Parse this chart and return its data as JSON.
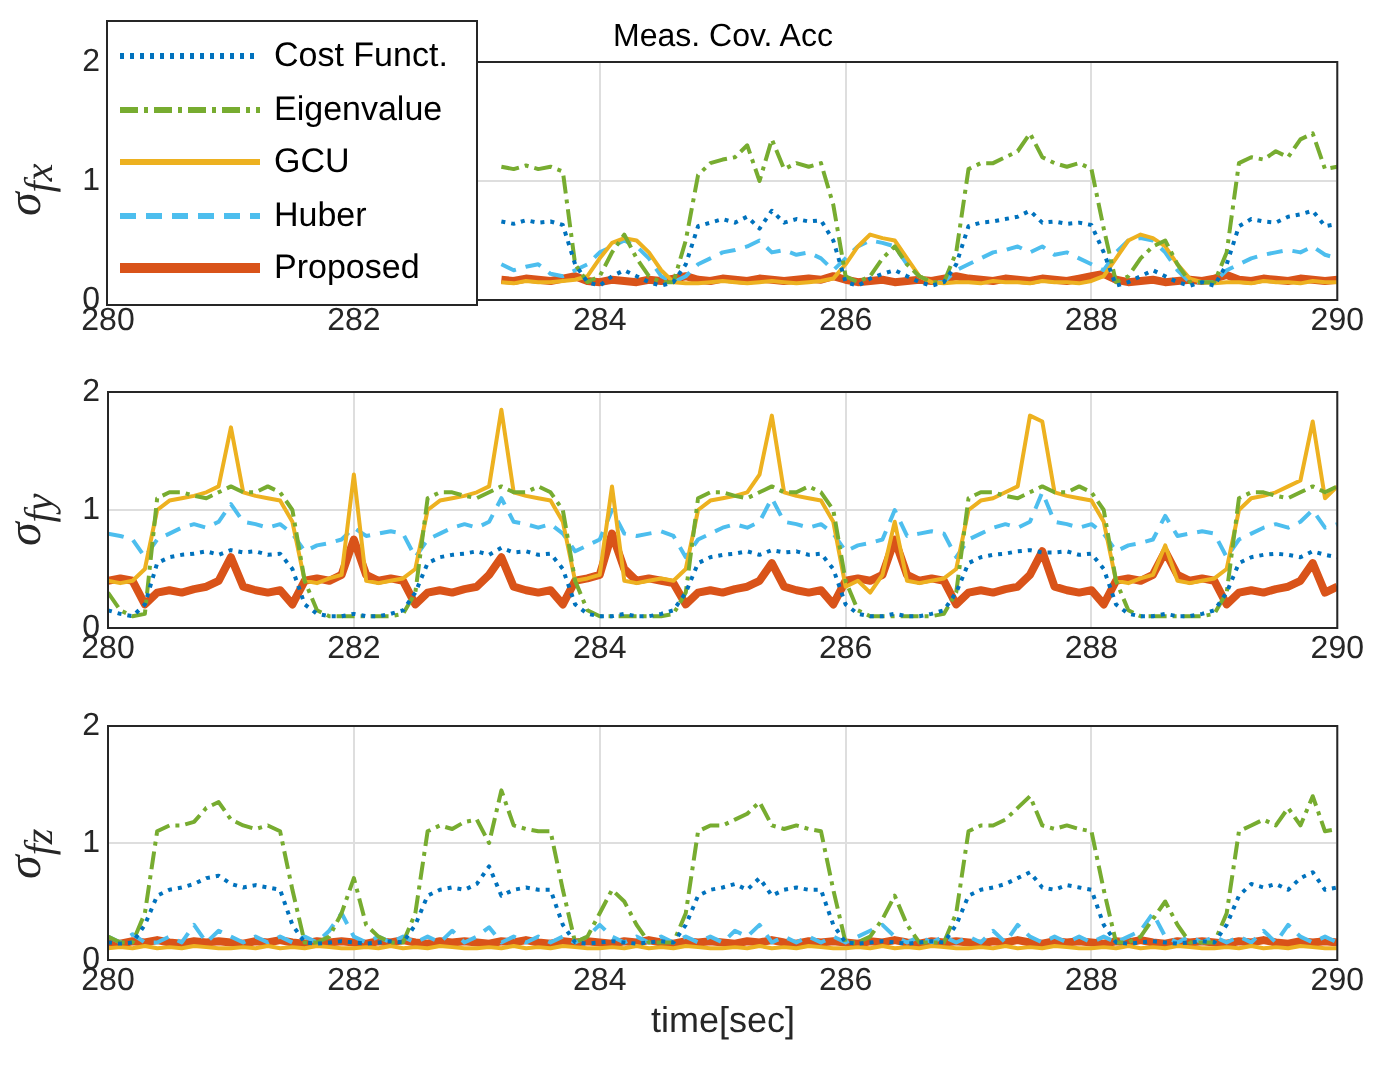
{
  "chart_data": [
    {
      "type": "line",
      "title": "Meas. Cov. Acc",
      "ylabel": "σ$_{fx}$",
      "xlim": [
        280,
        290
      ],
      "xticks": [
        280,
        282,
        284,
        286,
        288,
        290
      ],
      "ylim": [
        0,
        2
      ],
      "yticks": [
        0,
        1,
        2
      ],
      "grid": true,
      "legend": "top left",
      "marker": "none",
      "x": [
        283.2,
        283.3,
        283.4,
        283.5,
        283.6,
        283.7,
        283.8,
        283.9,
        284,
        284.1,
        284.2,
        284.3,
        284.4,
        284.5,
        284.6,
        284.7,
        284.8,
        284.9,
        285,
        285.1,
        285.2,
        285.3,
        285.4,
        285.5,
        285.6,
        285.7,
        285.8,
        285.9,
        286,
        286.1,
        286.2,
        286.3,
        286.4,
        286.5,
        286.6,
        286.7,
        286.8,
        286.9,
        287,
        287.1,
        287.2,
        287.3,
        287.4,
        287.5,
        287.6,
        287.7,
        287.8,
        287.9,
        288,
        288.1,
        288.2,
        288.3,
        288.4,
        288.5,
        288.6,
        288.7,
        288.8,
        288.9,
        289,
        289.1,
        289.2,
        289.3,
        289.4,
        289.5,
        289.6,
        289.7,
        289.8,
        289.9,
        290
      ],
      "series": [
        {
          "name": "Cost Funct.",
          "color": "#0072bd",
          "line_style": "dotted",
          "values": [
            0.66,
            0.64,
            0.67,
            0.65,
            0.66,
            0.63,
            0.3,
            0.15,
            0.12,
            0.2,
            0.25,
            0.2,
            0.15,
            0.12,
            0.15,
            0.3,
            0.62,
            0.65,
            0.68,
            0.65,
            0.7,
            0.6,
            0.75,
            0.65,
            0.68,
            0.66,
            0.67,
            0.5,
            0.15,
            0.12,
            0.18,
            0.22,
            0.25,
            0.2,
            0.15,
            0.12,
            0.15,
            0.3,
            0.62,
            0.65,
            0.66,
            0.68,
            0.7,
            0.75,
            0.65,
            0.66,
            0.64,
            0.65,
            0.63,
            0.4,
            0.12,
            0.15,
            0.2,
            0.25,
            0.2,
            0.15,
            0.12,
            0.15,
            0.12,
            0.3,
            0.62,
            0.68,
            0.66,
            0.65,
            0.7,
            0.72,
            0.75,
            0.62,
            0.64
          ]
        },
        {
          "name": "Eigenvalue",
          "color": "#77ac30",
          "line_style": "dashdot",
          "values": [
            1.12,
            1.1,
            1.13,
            1.1,
            1.12,
            1.08,
            0.3,
            0.15,
            0.2,
            0.4,
            0.55,
            0.35,
            0.2,
            0.15,
            0.15,
            0.5,
            1.05,
            1.15,
            1.18,
            1.2,
            1.3,
            1,
            1.35,
            1.1,
            1.15,
            1.12,
            1.15,
            0.8,
            0.2,
            0.15,
            0.2,
            0.35,
            0.45,
            0.3,
            0.2,
            0.15,
            0.15,
            0.4,
            1.1,
            1.15,
            1.15,
            1.2,
            1.25,
            1.4,
            1.2,
            1.15,
            1.12,
            1.15,
            1.1,
            0.6,
            0.15,
            0.2,
            0.35,
            0.45,
            0.5,
            0.3,
            0.15,
            0.15,
            0.15,
            0.4,
            1.15,
            1.2,
            1.18,
            1.25,
            1.2,
            1.35,
            1.4,
            1.1,
            1.12
          ]
        },
        {
          "name": "GCU",
          "color": "#edb120",
          "line_style": "solid",
          "values": [
            0.15,
            0.14,
            0.16,
            0.15,
            0.15,
            0.16,
            0.17,
            0.2,
            0.35,
            0.48,
            0.52,
            0.5,
            0.4,
            0.25,
            0.15,
            0.14,
            0.14,
            0.15,
            0.16,
            0.15,
            0.14,
            0.15,
            0.16,
            0.15,
            0.14,
            0.15,
            0.16,
            0.18,
            0.3,
            0.45,
            0.55,
            0.52,
            0.5,
            0.35,
            0.2,
            0.15,
            0.14,
            0.15,
            0.15,
            0.14,
            0.16,
            0.15,
            0.15,
            0.14,
            0.16,
            0.15,
            0.15,
            0.14,
            0.16,
            0.2,
            0.35,
            0.5,
            0.55,
            0.52,
            0.45,
            0.3,
            0.18,
            0.15,
            0.14,
            0.15,
            0.15,
            0.14,
            0.16,
            0.15,
            0.15,
            0.14,
            0.16,
            0.15,
            0.15
          ]
        },
        {
          "name": "Huber",
          "color": "#4dbeee",
          "line_style": "dashed",
          "values": [
            0.3,
            0.25,
            0.28,
            0.3,
            0.22,
            0.2,
            0.25,
            0.3,
            0.4,
            0.45,
            0.5,
            0.45,
            0.35,
            0.2,
            0.15,
            0.2,
            0.3,
            0.35,
            0.4,
            0.42,
            0.45,
            0.5,
            0.4,
            0.42,
            0.38,
            0.4,
            0.35,
            0.25,
            0.35,
            0.45,
            0.5,
            0.48,
            0.45,
            0.3,
            0.2,
            0.15,
            0.15,
            0.25,
            0.3,
            0.35,
            0.4,
            0.42,
            0.45,
            0.4,
            0.45,
            0.38,
            0.4,
            0.35,
            0.3,
            0.25,
            0.4,
            0.5,
            0.52,
            0.5,
            0.4,
            0.25,
            0.15,
            0.15,
            0.15,
            0.25,
            0.3,
            0.35,
            0.38,
            0.4,
            0.42,
            0.4,
            0.45,
            0.38,
            0.35
          ]
        },
        {
          "name": "Proposed",
          "color": "#d95319",
          "line_style": "solid",
          "values": [
            0.17,
            0.16,
            0.18,
            0.17,
            0.16,
            0.18,
            0.2,
            0.16,
            0.15,
            0.17,
            0.16,
            0.15,
            0.17,
            0.16,
            0.18,
            0.2,
            0.17,
            0.16,
            0.18,
            0.17,
            0.16,
            0.18,
            0.17,
            0.16,
            0.17,
            0.18,
            0.17,
            0.2,
            0.17,
            0.15,
            0.16,
            0.17,
            0.15,
            0.16,
            0.17,
            0.16,
            0.18,
            0.2,
            0.18,
            0.17,
            0.16,
            0.18,
            0.17,
            0.16,
            0.18,
            0.17,
            0.16,
            0.18,
            0.2,
            0.22,
            0.17,
            0.15,
            0.16,
            0.17,
            0.15,
            0.16,
            0.17,
            0.16,
            0.18,
            0.21,
            0.17,
            0.16,
            0.18,
            0.17,
            0.16,
            0.18,
            0.17,
            0.16,
            0.17
          ]
        }
      ]
    },
    {
      "type": "line",
      "ylabel": "σ$_{fy}$",
      "xlim": [
        280,
        290
      ],
      "xticks": [
        280,
        282,
        284,
        286,
        288,
        290
      ],
      "ylim": [
        0,
        2
      ],
      "yticks": [
        0,
        1,
        2
      ],
      "grid": true,
      "marker": "none",
      "x": [
        280,
        280.1,
        280.2,
        280.3,
        280.4,
        280.5,
        280.6,
        280.7,
        280.8,
        280.9,
        281,
        281.1,
        281.2,
        281.3,
        281.4,
        281.5,
        281.6,
        281.7,
        281.8,
        281.9,
        282,
        282.1,
        282.2,
        282.3,
        282.4,
        282.5,
        282.6,
        282.7,
        282.8,
        282.9,
        283,
        283.1,
        283.2,
        283.3,
        283.4,
        283.5,
        283.6,
        283.7,
        283.8,
        283.9,
        284,
        284.1,
        284.2,
        284.3,
        284.4,
        284.5,
        284.6,
        284.7,
        284.8,
        284.9,
        285,
        285.1,
        285.2,
        285.3,
        285.4,
        285.5,
        285.6,
        285.7,
        285.8,
        285.9,
        286,
        286.1,
        286.2,
        286.3,
        286.4,
        286.5,
        286.6,
        286.7,
        286.8,
        286.9,
        287,
        287.1,
        287.2,
        287.3,
        287.4,
        287.5,
        287.6,
        287.7,
        287.8,
        287.9,
        288,
        288.1,
        288.2,
        288.3,
        288.4,
        288.5,
        288.6,
        288.7,
        288.8,
        288.9,
        289,
        289.1,
        289.2,
        289.3,
        289.4,
        289.5,
        289.6,
        289.7,
        289.8,
        289.9,
        290
      ],
      "series": [
        {
          "color": "#0072bd",
          "line_style": "dotted",
          "values": [
            0.15,
            0.12,
            0.1,
            0.2,
            0.55,
            0.6,
            0.62,
            0.63,
            0.65,
            0.62,
            0.66,
            0.64,
            0.65,
            0.62,
            0.63,
            0.5,
            0.2,
            0.12,
            0.1,
            0.1,
            0.12,
            0.1,
            0.1,
            0.12,
            0.15,
            0.3,
            0.55,
            0.6,
            0.62,
            0.63,
            0.65,
            0.62,
            0.68,
            0.64,
            0.65,
            0.62,
            0.63,
            0.5,
            0.2,
            0.12,
            0.1,
            0.1,
            0.12,
            0.1,
            0.1,
            0.12,
            0.15,
            0.3,
            0.55,
            0.6,
            0.62,
            0.63,
            0.65,
            0.62,
            0.66,
            0.64,
            0.65,
            0.62,
            0.63,
            0.5,
            0.2,
            0.12,
            0.1,
            0.1,
            0.12,
            0.1,
            0.1,
            0.12,
            0.15,
            0.3,
            0.55,
            0.6,
            0.62,
            0.63,
            0.65,
            0.66,
            0.64,
            0.64,
            0.65,
            0.62,
            0.63,
            0.5,
            0.2,
            0.12,
            0.1,
            0.1,
            0.12,
            0.1,
            0.1,
            0.12,
            0.15,
            0.3,
            0.55,
            0.6,
            0.62,
            0.63,
            0.62,
            0.6,
            0.65,
            0.62,
            0.6
          ]
        },
        {
          "color": "#77ac30",
          "line_style": "dashdot",
          "values": [
            0.3,
            0.15,
            0.1,
            0.12,
            1.1,
            1.15,
            1.15,
            1.12,
            1.1,
            1.15,
            1.2,
            1.15,
            1.15,
            1.2,
            1.15,
            1,
            0.4,
            0.15,
            0.1,
            0.1,
            0.1,
            0.1,
            0.1,
            0.1,
            0.12,
            0.3,
            1.1,
            1.15,
            1.15,
            1.12,
            1.1,
            1.15,
            1.2,
            1.15,
            1.15,
            1.2,
            1.15,
            1,
            0.4,
            0.15,
            0.1,
            0.1,
            0.1,
            0.1,
            0.1,
            0.1,
            0.12,
            0.3,
            1.1,
            1.15,
            1.15,
            1.12,
            1.1,
            1.15,
            1.2,
            1.15,
            1.15,
            1.2,
            1.15,
            1,
            0.4,
            0.15,
            0.1,
            0.1,
            0.1,
            0.1,
            0.1,
            0.1,
            0.12,
            0.3,
            1.1,
            1.15,
            1.15,
            1.12,
            1.1,
            1.15,
            1.2,
            1.15,
            1.15,
            1.2,
            1.15,
            1,
            0.4,
            0.15,
            0.1,
            0.1,
            0.1,
            0.1,
            0.1,
            0.1,
            0.12,
            0.3,
            1.1,
            1.15,
            1.15,
            1.12,
            1.1,
            1.15,
            1.2,
            1.15,
            1.2
          ]
        },
        {
          "color": "#edb120",
          "line_style": "solid",
          "values": [
            0.4,
            0.38,
            0.4,
            0.5,
            1,
            1.08,
            1.1,
            1.12,
            1.15,
            1.2,
            1.7,
            1.15,
            1.12,
            1.1,
            1.08,
            0.9,
            0.4,
            0.38,
            0.42,
            0.45,
            1.3,
            0.4,
            0.38,
            0.4,
            0.42,
            0.5,
            1,
            1.08,
            1.1,
            1.12,
            1.15,
            1.2,
            1.85,
            1.15,
            1.12,
            1.1,
            1.08,
            0.9,
            0.4,
            0.42,
            0.45,
            1.2,
            0.4,
            0.38,
            0.4,
            0.42,
            0.4,
            0.5,
            1,
            1.08,
            1.1,
            1.12,
            1.15,
            1.3,
            1.8,
            1.15,
            1.12,
            1.1,
            1.08,
            0.9,
            0.35,
            0.4,
            0.3,
            0.45,
            0.9,
            0.4,
            0.38,
            0.4,
            0.42,
            0.5,
            1,
            1.08,
            1.1,
            1.15,
            1.2,
            1.8,
            1.75,
            1.15,
            1.12,
            1.1,
            1.08,
            0.9,
            0.4,
            0.38,
            0.42,
            0.45,
            0.7,
            0.4,
            0.38,
            0.4,
            0.42,
            0.5,
            1,
            1.1,
            1.12,
            1.15,
            1.2,
            1.25,
            1.75,
            1.1,
            1.2
          ]
        },
        {
          "color": "#4dbeee",
          "line_style": "dashed",
          "values": [
            0.8,
            0.78,
            0.75,
            0.6,
            0.75,
            0.8,
            0.85,
            0.88,
            0.85,
            0.9,
            1.05,
            0.9,
            0.88,
            0.85,
            0.88,
            0.8,
            0.65,
            0.7,
            0.72,
            0.75,
            0.85,
            0.78,
            0.8,
            0.82,
            0.8,
            0.6,
            0.75,
            0.8,
            0.85,
            0.88,
            0.85,
            0.9,
            1.1,
            0.9,
            0.88,
            0.85,
            0.88,
            0.8,
            0.65,
            0.7,
            0.75,
            1,
            0.8,
            0.78,
            0.8,
            0.82,
            0.78,
            0.6,
            0.75,
            0.8,
            0.85,
            0.88,
            0.85,
            0.9,
            1.1,
            0.9,
            0.88,
            0.85,
            0.88,
            0.8,
            0.65,
            0.7,
            0.72,
            0.75,
            1,
            0.78,
            0.8,
            0.82,
            0.8,
            0.6,
            0.75,
            0.8,
            0.85,
            0.88,
            0.85,
            0.9,
            1.15,
            0.9,
            0.88,
            0.85,
            0.88,
            0.8,
            0.65,
            0.7,
            0.72,
            0.75,
            0.95,
            0.78,
            0.8,
            0.82,
            0.8,
            0.6,
            0.75,
            0.8,
            0.85,
            0.88,
            0.85,
            0.9,
            1,
            0.85,
            0.88
          ]
        },
        {
          "color": "#d95319",
          "line_style": "solid",
          "values": [
            0.4,
            0.42,
            0.4,
            0.2,
            0.3,
            0.32,
            0.3,
            0.33,
            0.35,
            0.4,
            0.6,
            0.35,
            0.32,
            0.3,
            0.32,
            0.2,
            0.4,
            0.42,
            0.4,
            0.45,
            0.75,
            0.45,
            0.4,
            0.42,
            0.4,
            0.2,
            0.3,
            0.32,
            0.3,
            0.33,
            0.35,
            0.45,
            0.6,
            0.35,
            0.32,
            0.3,
            0.32,
            0.2,
            0.4,
            0.42,
            0.45,
            0.8,
            0.5,
            0.4,
            0.42,
            0.4,
            0.38,
            0.2,
            0.3,
            0.32,
            0.3,
            0.33,
            0.35,
            0.4,
            0.55,
            0.35,
            0.32,
            0.3,
            0.32,
            0.2,
            0.4,
            0.42,
            0.4,
            0.45,
            0.75,
            0.45,
            0.4,
            0.42,
            0.4,
            0.2,
            0.3,
            0.32,
            0.3,
            0.33,
            0.35,
            0.45,
            0.65,
            0.35,
            0.32,
            0.3,
            0.32,
            0.2,
            0.4,
            0.42,
            0.4,
            0.45,
            0.65,
            0.45,
            0.4,
            0.42,
            0.4,
            0.2,
            0.3,
            0.32,
            0.3,
            0.33,
            0.35,
            0.4,
            0.55,
            0.3,
            0.35
          ]
        }
      ]
    },
    {
      "type": "line",
      "ylabel": "σ$_{fz}$",
      "xlabel": "time[sec]",
      "xlim": [
        280,
        290
      ],
      "xticks": [
        280,
        282,
        284,
        286,
        288,
        290
      ],
      "ylim": [
        0,
        2
      ],
      "yticks": [
        0,
        1,
        2
      ],
      "grid": true,
      "marker": "none",
      "x": [
        280,
        280.1,
        280.2,
        280.3,
        280.4,
        280.5,
        280.6,
        280.7,
        280.8,
        280.9,
        281,
        281.1,
        281.2,
        281.3,
        281.4,
        281.5,
        281.6,
        281.7,
        281.8,
        281.9,
        282,
        282.1,
        282.2,
        282.3,
        282.4,
        282.5,
        282.6,
        282.7,
        282.8,
        282.9,
        283,
        283.1,
        283.2,
        283.3,
        283.4,
        283.5,
        283.6,
        283.7,
        283.8,
        283.9,
        284,
        284.1,
        284.2,
        284.3,
        284.4,
        284.5,
        284.6,
        284.7,
        284.8,
        284.9,
        285,
        285.1,
        285.2,
        285.3,
        285.4,
        285.5,
        285.6,
        285.7,
        285.8,
        285.9,
        286,
        286.1,
        286.2,
        286.3,
        286.4,
        286.5,
        286.6,
        286.7,
        286.8,
        286.9,
        287,
        287.1,
        287.2,
        287.3,
        287.4,
        287.5,
        287.6,
        287.7,
        287.8,
        287.9,
        288,
        288.1,
        288.2,
        288.3,
        288.4,
        288.5,
        288.6,
        288.7,
        288.8,
        288.9,
        289,
        289.1,
        289.2,
        289.3,
        289.4,
        289.5,
        289.6,
        289.7,
        289.8,
        289.9,
        290
      ],
      "series": [
        {
          "color": "#0072bd",
          "line_style": "dotted",
          "values": [
            0.15,
            0.14,
            0.15,
            0.3,
            0.55,
            0.6,
            0.62,
            0.65,
            0.7,
            0.72,
            0.65,
            0.62,
            0.64,
            0.62,
            0.6,
            0.3,
            0.15,
            0.14,
            0.15,
            0.16,
            0.15,
            0.14,
            0.15,
            0.16,
            0.15,
            0.3,
            0.55,
            0.6,
            0.62,
            0.6,
            0.65,
            0.8,
            0.55,
            0.6,
            0.62,
            0.6,
            0.6,
            0.3,
            0.15,
            0.14,
            0.15,
            0.16,
            0.15,
            0.14,
            0.15,
            0.16,
            0.15,
            0.3,
            0.55,
            0.6,
            0.62,
            0.65,
            0.6,
            0.7,
            0.55,
            0.6,
            0.62,
            0.6,
            0.6,
            0.3,
            0.15,
            0.14,
            0.15,
            0.16,
            0.15,
            0.14,
            0.15,
            0.16,
            0.15,
            0.3,
            0.55,
            0.6,
            0.62,
            0.65,
            0.7,
            0.75,
            0.62,
            0.6,
            0.64,
            0.62,
            0.6,
            0.3,
            0.15,
            0.14,
            0.15,
            0.16,
            0.15,
            0.14,
            0.15,
            0.16,
            0.15,
            0.3,
            0.55,
            0.65,
            0.62,
            0.65,
            0.6,
            0.7,
            0.75,
            0.6,
            0.62
          ]
        },
        {
          "color": "#77ac30",
          "line_style": "dashdot",
          "values": [
            0.2,
            0.15,
            0.15,
            0.4,
            1.1,
            1.15,
            1.15,
            1.18,
            1.3,
            1.35,
            1.2,
            1.15,
            1.12,
            1.15,
            1.1,
            0.6,
            0.15,
            0.15,
            0.2,
            0.4,
            0.7,
            0.3,
            0.2,
            0.15,
            0.15,
            0.4,
            1.1,
            1.15,
            1.12,
            1.18,
            1.2,
            1,
            1.45,
            1.15,
            1.12,
            1.1,
            1.1,
            0.6,
            0.15,
            0.2,
            0.4,
            0.6,
            0.5,
            0.3,
            0.15,
            0.15,
            0.15,
            0.4,
            1.1,
            1.15,
            1.15,
            1.2,
            1.25,
            1.35,
            1.15,
            1.12,
            1.15,
            1.12,
            1.1,
            0.6,
            0.15,
            0.15,
            0.2,
            0.35,
            0.55,
            0.3,
            0.15,
            0.15,
            0.15,
            0.4,
            1.1,
            1.15,
            1.15,
            1.2,
            1.3,
            1.4,
            1.15,
            1.12,
            1.15,
            1.12,
            1.1,
            0.6,
            0.15,
            0.15,
            0.2,
            0.35,
            0.5,
            0.3,
            0.15,
            0.15,
            0.15,
            0.4,
            1.1,
            1.15,
            1.2,
            1.15,
            1.3,
            1.15,
            1.4,
            1.1,
            1.12
          ]
        },
        {
          "color": "#edb120",
          "line_style": "solid",
          "values": [
            0.1,
            0.11,
            0.1,
            0.12,
            0.1,
            0.11,
            0.1,
            0.12,
            0.11,
            0.1,
            0.1,
            0.11,
            0.1,
            0.12,
            0.1,
            0.11,
            0.1,
            0.12,
            0.11,
            0.1,
            0.1,
            0.11,
            0.1,
            0.12,
            0.1,
            0.11,
            0.1,
            0.12,
            0.11,
            0.1,
            0.1,
            0.11,
            0.1,
            0.12,
            0.1,
            0.11,
            0.1,
            0.12,
            0.11,
            0.1,
            0.1,
            0.11,
            0.1,
            0.12,
            0.1,
            0.11,
            0.1,
            0.12,
            0.11,
            0.1,
            0.1,
            0.11,
            0.1,
            0.12,
            0.1,
            0.11,
            0.1,
            0.12,
            0.11,
            0.1,
            0.1,
            0.11,
            0.1,
            0.12,
            0.1,
            0.11,
            0.1,
            0.12,
            0.11,
            0.1,
            0.1,
            0.11,
            0.1,
            0.12,
            0.1,
            0.11,
            0.1,
            0.12,
            0.11,
            0.1,
            0.1,
            0.11,
            0.1,
            0.12,
            0.1,
            0.11,
            0.1,
            0.12,
            0.11,
            0.1,
            0.1,
            0.11,
            0.1,
            0.12,
            0.1,
            0.11,
            0.1,
            0.12,
            0.11,
            0.1,
            0.1
          ]
        },
        {
          "color": "#4dbeee",
          "line_style": "dashed",
          "values": [
            0.2,
            0.15,
            0.22,
            0.15,
            0.15,
            0.2,
            0.15,
            0.3,
            0.15,
            0.25,
            0.2,
            0.15,
            0.2,
            0.15,
            0.2,
            0.15,
            0.2,
            0.15,
            0.25,
            0.4,
            0.2,
            0.15,
            0.2,
            0.15,
            0.2,
            0.15,
            0.2,
            0.15,
            0.25,
            0.15,
            0.2,
            0.28,
            0.15,
            0.2,
            0.15,
            0.2,
            0.15,
            0.2,
            0.15,
            0.2,
            0.3,
            0.2,
            0.15,
            0.2,
            0.15,
            0.2,
            0.15,
            0.2,
            0.15,
            0.2,
            0.15,
            0.25,
            0.2,
            0.3,
            0.15,
            0.2,
            0.15,
            0.2,
            0.15,
            0.2,
            0.15,
            0.2,
            0.25,
            0.3,
            0.2,
            0.15,
            0.2,
            0.15,
            0.2,
            0.15,
            0.2,
            0.15,
            0.25,
            0.15,
            0.3,
            0.2,
            0.15,
            0.2,
            0.15,
            0.2,
            0.15,
            0.2,
            0.15,
            0.2,
            0.25,
            0.4,
            0.2,
            0.15,
            0.2,
            0.15,
            0.2,
            0.15,
            0.2,
            0.15,
            0.25,
            0.15,
            0.3,
            0.2,
            0.15,
            0.2,
            0.15
          ]
        },
        {
          "color": "#d95319",
          "line_style": "solid",
          "values": [
            0.15,
            0.14,
            0.16,
            0.15,
            0.17,
            0.15,
            0.14,
            0.16,
            0.15,
            0.16,
            0.15,
            0.14,
            0.16,
            0.15,
            0.17,
            0.15,
            0.14,
            0.16,
            0.15,
            0.16,
            0.15,
            0.14,
            0.16,
            0.15,
            0.17,
            0.15,
            0.14,
            0.16,
            0.15,
            0.16,
            0.15,
            0.14,
            0.16,
            0.15,
            0.17,
            0.15,
            0.14,
            0.16,
            0.15,
            0.16,
            0.15,
            0.14,
            0.16,
            0.15,
            0.17,
            0.15,
            0.14,
            0.16,
            0.15,
            0.16,
            0.15,
            0.14,
            0.16,
            0.15,
            0.17,
            0.15,
            0.14,
            0.16,
            0.15,
            0.16,
            0.15,
            0.14,
            0.16,
            0.15,
            0.17,
            0.15,
            0.14,
            0.16,
            0.15,
            0.16,
            0.15,
            0.14,
            0.16,
            0.15,
            0.17,
            0.15,
            0.14,
            0.16,
            0.15,
            0.16,
            0.15,
            0.14,
            0.16,
            0.15,
            0.17,
            0.15,
            0.14,
            0.16,
            0.15,
            0.16,
            0.15,
            0.14,
            0.16,
            0.15,
            0.17,
            0.15,
            0.14,
            0.16,
            0.15,
            0.16,
            0.15
          ]
        }
      ]
    }
  ]
}
